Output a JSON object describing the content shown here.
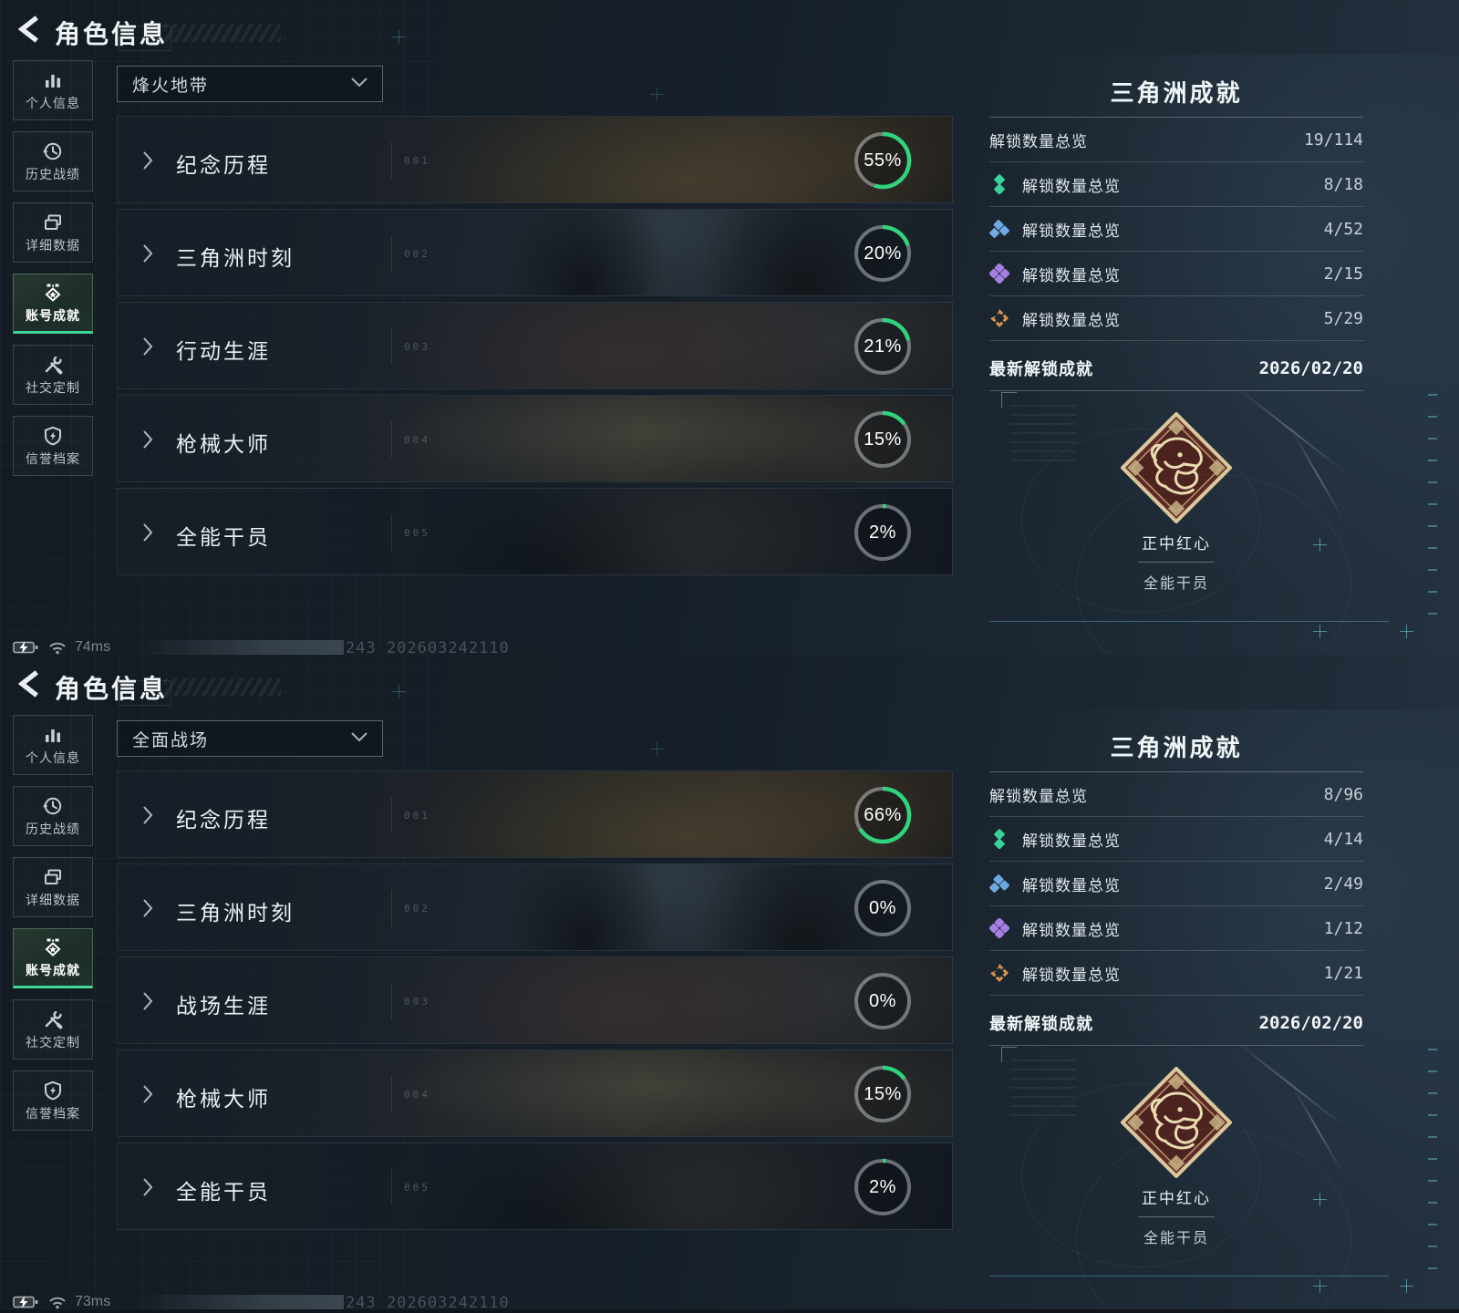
{
  "header": {
    "title": "角色信息"
  },
  "sidebar": {
    "selected_index": 3,
    "items": [
      {
        "label": "个人信息",
        "icon": "bar-chart-icon"
      },
      {
        "label": "历史战绩",
        "icon": "history-clock-icon"
      },
      {
        "label": "详细数据",
        "icon": "documents-icon"
      },
      {
        "label": "账号成就",
        "icon": "achievement-badge-icon"
      },
      {
        "label": "社交定制",
        "icon": "tools-icon"
      },
      {
        "label": "信誉档案",
        "icon": "shield-bolt-icon"
      }
    ]
  },
  "panels": [
    {
      "mode_dropdown": {
        "value": "烽火地带",
        "icon": "chevron-down-icon"
      },
      "rows": [
        {
          "index": "001",
          "title": "纪念历程",
          "percent": 55,
          "percent_label": "55%"
        },
        {
          "index": "002",
          "title": "三角洲时刻",
          "percent": 20,
          "percent_label": "20%"
        },
        {
          "index": "003",
          "title": "行动生涯",
          "percent": 21,
          "percent_label": "21%"
        },
        {
          "index": "004",
          "title": "枪械大师",
          "percent": 15,
          "percent_label": "15%"
        },
        {
          "index": "005",
          "title": "全能干员",
          "percent": 2,
          "percent_label": "2%"
        }
      ],
      "achievements": {
        "title": "三角洲成就",
        "summary": {
          "label": "解锁数量总览",
          "value": "19/114"
        },
        "tiers": [
          {
            "label": "解锁数量总览",
            "value": "8/18",
            "icon": "tier-diamond-2-green",
            "color": "#38d395"
          },
          {
            "label": "解锁数量总览",
            "value": "4/52",
            "icon": "tier-diamond-3-blue",
            "color": "#6fa9e4"
          },
          {
            "label": "解锁数量总览",
            "value": "2/15",
            "icon": "tier-diamond-4-purple",
            "color": "#a77fe2"
          },
          {
            "label": "解锁数量总览",
            "value": "5/29",
            "icon": "tier-diamond-ring-orange",
            "color": "#d9924c"
          }
        ],
        "latest": {
          "label": "最新解锁成就",
          "value": "2026/02/20"
        },
        "badge": {
          "name": "正中红心",
          "category": "全能干员"
        }
      },
      "status": {
        "ping": "74ms",
        "session_id": "243_202603242110"
      }
    },
    {
      "mode_dropdown": {
        "value": "全面战场",
        "icon": "chevron-down-icon"
      },
      "rows": [
        {
          "index": "001",
          "title": "纪念历程",
          "percent": 66,
          "percent_label": "66%"
        },
        {
          "index": "002",
          "title": "三角洲时刻",
          "percent": 0,
          "percent_label": "0%"
        },
        {
          "index": "003",
          "title": "战场生涯",
          "percent": 0,
          "percent_label": "0%"
        },
        {
          "index": "004",
          "title": "枪械大师",
          "percent": 15,
          "percent_label": "15%"
        },
        {
          "index": "005",
          "title": "全能干员",
          "percent": 2,
          "percent_label": "2%"
        }
      ],
      "achievements": {
        "title": "三角洲成就",
        "summary": {
          "label": "解锁数量总览",
          "value": "8/96"
        },
        "tiers": [
          {
            "label": "解锁数量总览",
            "value": "4/14",
            "icon": "tier-diamond-2-green",
            "color": "#38d395"
          },
          {
            "label": "解锁数量总览",
            "value": "2/49",
            "icon": "tier-diamond-3-blue",
            "color": "#6fa9e4"
          },
          {
            "label": "解锁数量总览",
            "value": "1/12",
            "icon": "tier-diamond-4-purple",
            "color": "#a77fe2"
          },
          {
            "label": "解锁数量总览",
            "value": "1/21",
            "icon": "tier-diamond-ring-orange",
            "color": "#d9924c"
          }
        ],
        "latest": {
          "label": "最新解锁成就",
          "value": "2026/02/20"
        },
        "badge": {
          "name": "正中红心",
          "category": "全能干员"
        }
      },
      "status": {
        "ping": "73ms",
        "session_id": "243_202603242110"
      }
    }
  ],
  "colors": {
    "progress_green": "#2fd47c",
    "ring_track": "rgba(233,240,244,0.40)",
    "accent_teal": "#3ed795",
    "badge_maroon": "#5d2b26",
    "badge_cream": "#dbc79c"
  }
}
